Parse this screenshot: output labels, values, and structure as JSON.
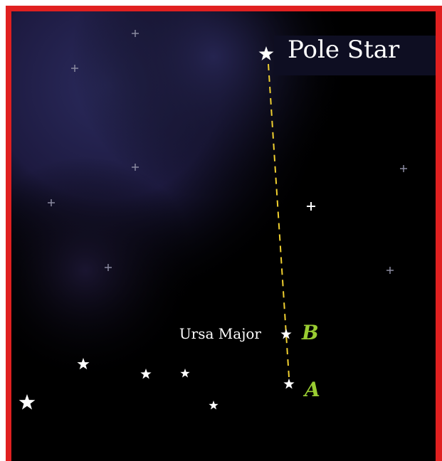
{
  "labels": {
    "pole_star": "Pole Star",
    "constellation": "Ursa Major",
    "star_b": "B",
    "star_a": "A"
  }
}
